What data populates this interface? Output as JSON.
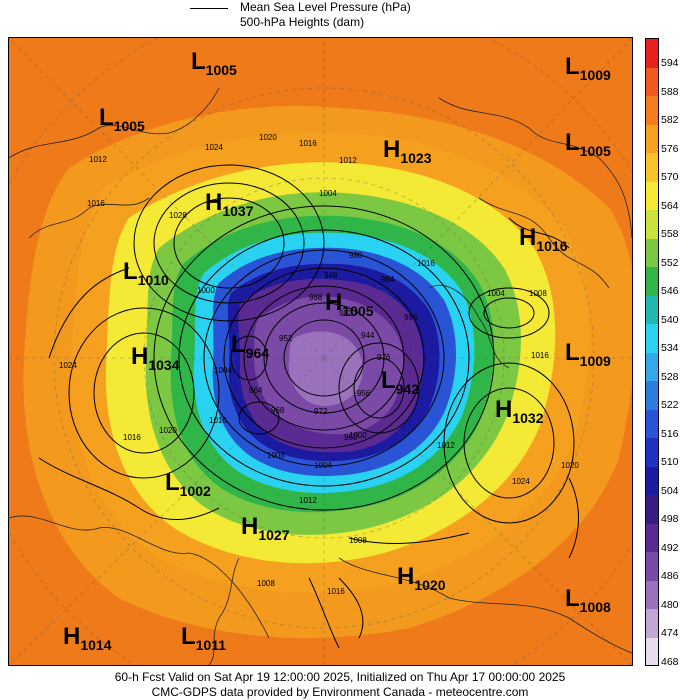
{
  "legend": {
    "line1": "Mean Sea Level Pressure (hPa)",
    "line2": "500-hPa Heights (dam)"
  },
  "colors": {
    "purple_dark": "#5a2a8c",
    "purple": "#7e4aa8",
    "blue_dark": "#1a1aa8",
    "blue": "#2d4be0",
    "cyan": "#3ad8f0",
    "green": "#28b040",
    "yellow": "#f2ec3a",
    "orange": "#f39a1e",
    "orange_dark": "#ef7a1a"
  },
  "centers": [
    {
      "type": "L",
      "value": "1005"
    },
    {
      "type": "L",
      "value": "1009"
    },
    {
      "type": "L",
      "value": "1005"
    },
    {
      "type": "H",
      "value": "1023"
    },
    {
      "type": "L",
      "value": "1005"
    },
    {
      "type": "H",
      "value": "1037"
    },
    {
      "type": "H",
      "value": "1016"
    },
    {
      "type": "L",
      "value": "1010"
    },
    {
      "type": "H",
      "value": "1005"
    },
    {
      "type": "H",
      "value": "1034"
    },
    {
      "type": "L",
      "value": "964"
    },
    {
      "type": "L",
      "value": "1009"
    },
    {
      "type": "L",
      "value": "942"
    },
    {
      "type": "H",
      "value": "1032"
    },
    {
      "type": "L",
      "value": "1002"
    },
    {
      "type": "H",
      "value": "1027"
    },
    {
      "type": "H",
      "value": "1020"
    },
    {
      "type": "L",
      "value": "1008"
    },
    {
      "type": "H",
      "value": "1014"
    },
    {
      "type": "L",
      "value": "1011"
    }
  ],
  "contour_labels": [
    "1020",
    "1016",
    "1012",
    "1024",
    "1028",
    "1016",
    "1012",
    "1004",
    "1008",
    "1004",
    "1016",
    "1020",
    "1024",
    "1016",
    "1012",
    "1008",
    "1004",
    "1000",
    "996",
    "992",
    "988",
    "984",
    "980",
    "976",
    "972",
    "968",
    "964",
    "960",
    "956",
    "952",
    "948",
    "944",
    "1008",
    "1012",
    "1016",
    "1024",
    "1020",
    "1000",
    "1004",
    "1016",
    "1016",
    "1008"
  ],
  "colorbar": {
    "labels": [
      "594",
      "588",
      "582",
      "576",
      "570",
      "564",
      "558",
      "552",
      "546",
      "540",
      "534",
      "528",
      "522",
      "516",
      "510",
      "504",
      "498",
      "492",
      "486",
      "480",
      "474",
      "468"
    ],
    "colors": [
      "#e8201e",
      "#f05a1c",
      "#f47c1e",
      "#f6a020",
      "#f7c42a",
      "#f4ea36",
      "#cce23c",
      "#7cc843",
      "#2fb548",
      "#20b8b0",
      "#28d2f0",
      "#34a8e8",
      "#2e7ee0",
      "#2a54d6",
      "#2232c0",
      "#1c1aa0",
      "#3a1c86",
      "#5a2a92",
      "#7a4aa6",
      "#9a72bc",
      "#c2a6d6",
      "#e6dcee"
    ]
  },
  "footer": {
    "line1": "60-h Fcst Valid on Sat Apr 19 12:00:00 2025, Initialized on Thu Apr 17 00:00:00 2025",
    "line2": "CMC-GDPS data provided by Environment Canada - meteocentre.com"
  }
}
